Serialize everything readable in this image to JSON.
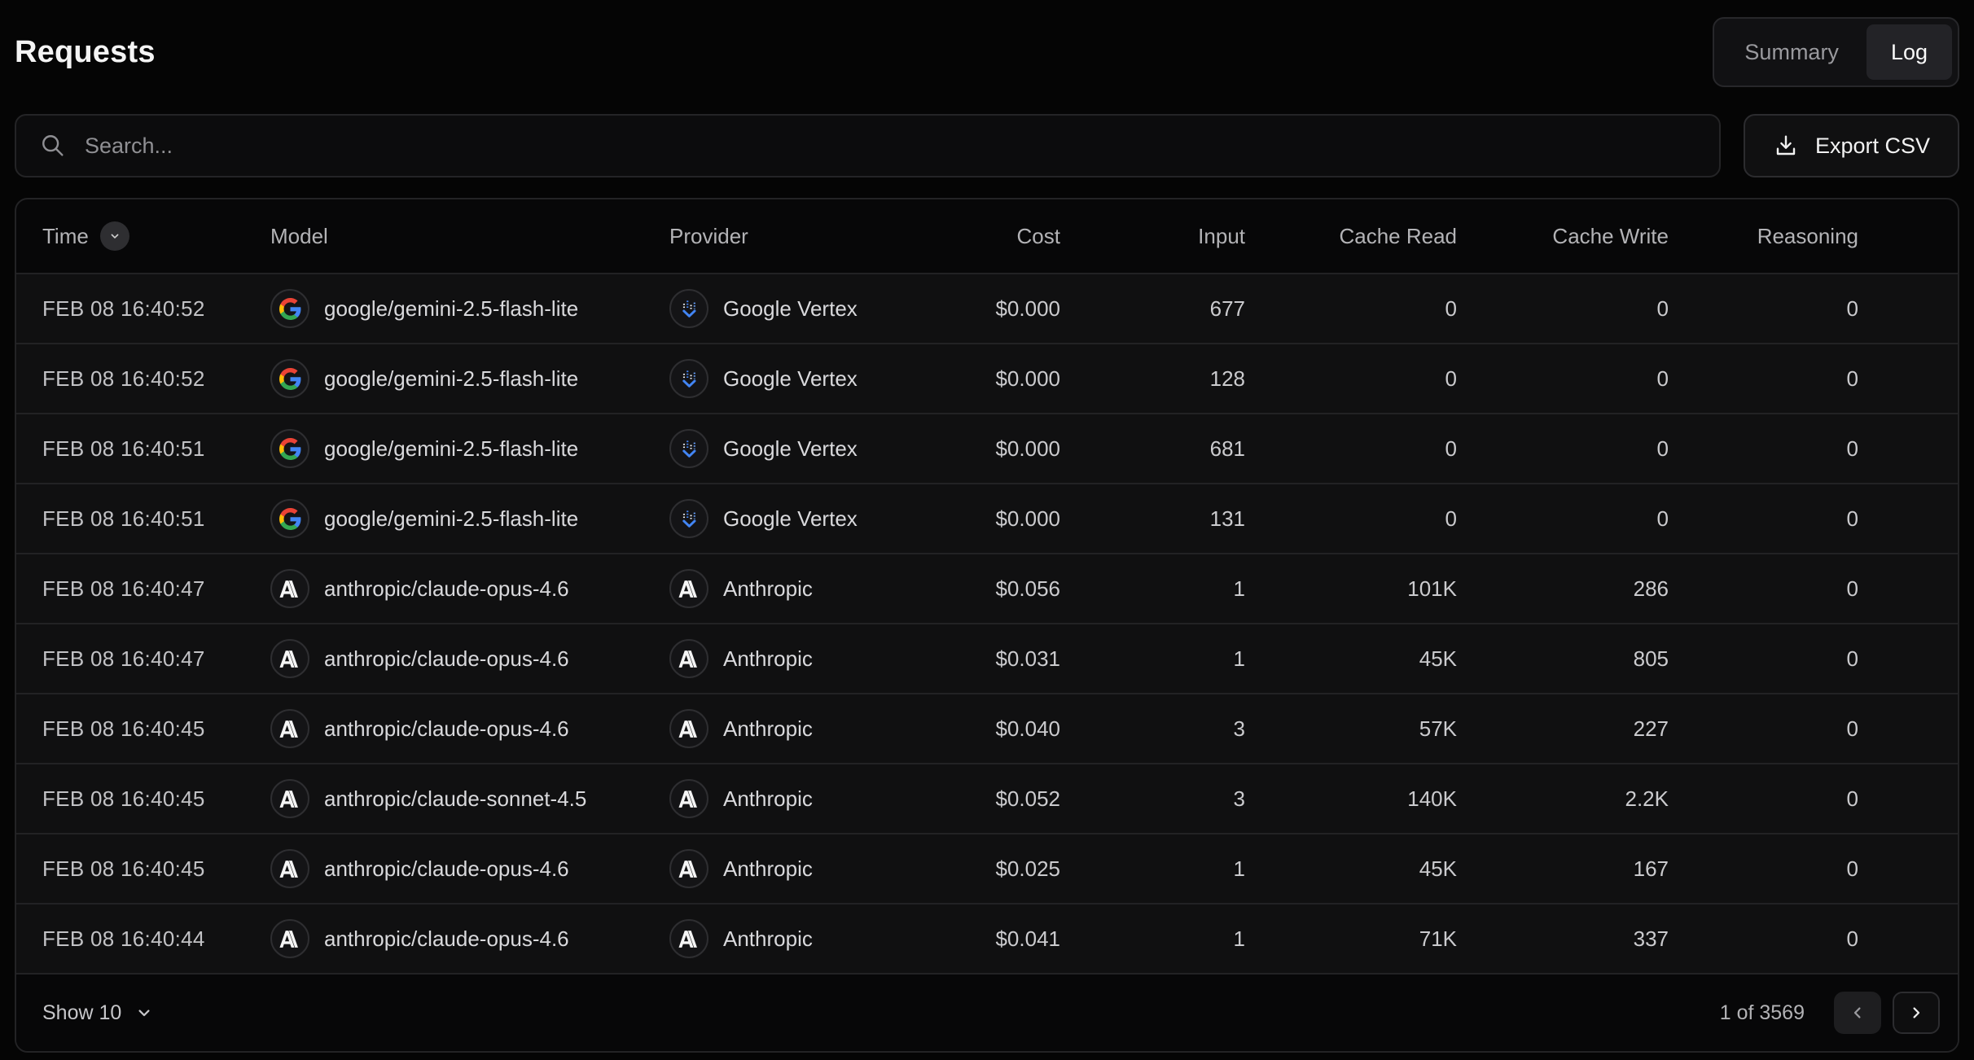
{
  "page": {
    "title": "Requests"
  },
  "view_toggle": {
    "summary_label": "Summary",
    "log_label": "Log",
    "active": "Log"
  },
  "search": {
    "placeholder": "Search..."
  },
  "export_button": {
    "label": "Export CSV"
  },
  "table": {
    "columns": [
      "Time",
      "Model",
      "Provider",
      "Cost",
      "Input",
      "Cache Read",
      "Cache Write",
      "Reasoning"
    ],
    "sorted_column": "Time",
    "sort_direction": "desc",
    "rows": [
      {
        "time": "FEB 08 16:40:52",
        "model": "google/gemini-2.5-flash-lite",
        "model_icon": "google",
        "provider": "Google Vertex",
        "provider_icon": "google-vertex",
        "cost": "$0.000",
        "input": "677",
        "cache_read": "0",
        "cache_write": "0",
        "reasoning": "0"
      },
      {
        "time": "FEB 08 16:40:52",
        "model": "google/gemini-2.5-flash-lite",
        "model_icon": "google",
        "provider": "Google Vertex",
        "provider_icon": "google-vertex",
        "cost": "$0.000",
        "input": "128",
        "cache_read": "0",
        "cache_write": "0",
        "reasoning": "0"
      },
      {
        "time": "FEB 08 16:40:51",
        "model": "google/gemini-2.5-flash-lite",
        "model_icon": "google",
        "provider": "Google Vertex",
        "provider_icon": "google-vertex",
        "cost": "$0.000",
        "input": "681",
        "cache_read": "0",
        "cache_write": "0",
        "reasoning": "0"
      },
      {
        "time": "FEB 08 16:40:51",
        "model": "google/gemini-2.5-flash-lite",
        "model_icon": "google",
        "provider": "Google Vertex",
        "provider_icon": "google-vertex",
        "cost": "$0.000",
        "input": "131",
        "cache_read": "0",
        "cache_write": "0",
        "reasoning": "0"
      },
      {
        "time": "FEB 08 16:40:47",
        "model": "anthropic/claude-opus-4.6",
        "model_icon": "anthropic",
        "provider": "Anthropic",
        "provider_icon": "anthropic",
        "cost": "$0.056",
        "input": "1",
        "cache_read": "101K",
        "cache_write": "286",
        "reasoning": "0"
      },
      {
        "time": "FEB 08 16:40:47",
        "model": "anthropic/claude-opus-4.6",
        "model_icon": "anthropic",
        "provider": "Anthropic",
        "provider_icon": "anthropic",
        "cost": "$0.031",
        "input": "1",
        "cache_read": "45K",
        "cache_write": "805",
        "reasoning": "0"
      },
      {
        "time": "FEB 08 16:40:45",
        "model": "anthropic/claude-opus-4.6",
        "model_icon": "anthropic",
        "provider": "Anthropic",
        "provider_icon": "anthropic",
        "cost": "$0.040",
        "input": "3",
        "cache_read": "57K",
        "cache_write": "227",
        "reasoning": "0"
      },
      {
        "time": "FEB 08 16:40:45",
        "model": "anthropic/claude-sonnet-4.5",
        "model_icon": "anthropic",
        "provider": "Anthropic",
        "provider_icon": "anthropic",
        "cost": "$0.052",
        "input": "3",
        "cache_read": "140K",
        "cache_write": "2.2K",
        "reasoning": "0"
      },
      {
        "time": "FEB 08 16:40:45",
        "model": "anthropic/claude-opus-4.6",
        "model_icon": "anthropic",
        "provider": "Anthropic",
        "provider_icon": "anthropic",
        "cost": "$0.025",
        "input": "1",
        "cache_read": "45K",
        "cache_write": "167",
        "reasoning": "0"
      },
      {
        "time": "FEB 08 16:40:44",
        "model": "anthropic/claude-opus-4.6",
        "model_icon": "anthropic",
        "provider": "Anthropic",
        "provider_icon": "anthropic",
        "cost": "$0.041",
        "input": "1",
        "cache_read": "71K",
        "cache_write": "337",
        "reasoning": "0"
      }
    ]
  },
  "footer": {
    "page_size_label": "Show 10",
    "page_indicator": "1 of 3569"
  },
  "colors": {
    "background": "#050505",
    "row_surface": "#101011",
    "border": "#232325",
    "text_primary": "#e8e8e8",
    "text_secondary": "#b3b3b6",
    "google_blue": "#4285F4",
    "google_red": "#EA4335",
    "google_yellow": "#FBBC05",
    "google_green": "#34A853",
    "vertex_blue": "#4285F4"
  }
}
